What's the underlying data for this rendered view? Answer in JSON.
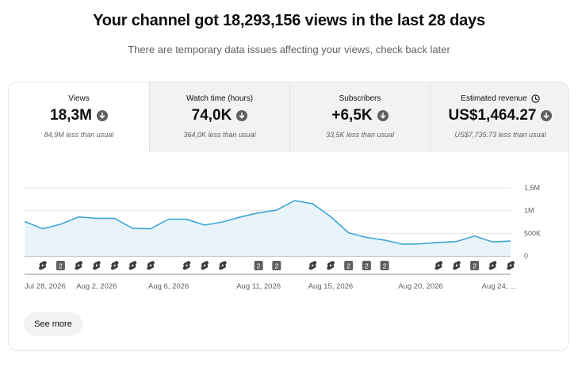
{
  "header": {
    "title": "Your channel got 18,293,156 views in the last 28 days",
    "subtitle": "There are temporary data issues affecting your views, check back later"
  },
  "tabs": [
    {
      "label": "Views",
      "value": "18,3M",
      "note": "84,9M less than usual",
      "selected": true
    },
    {
      "label": "Watch time (hours)",
      "value": "74,0K",
      "note": "364,0K less than usual",
      "selected": false
    },
    {
      "label": "Subscribers",
      "value": "+6,5K",
      "note": "33,5K less than usual",
      "selected": false
    },
    {
      "label": "Estimated revenue",
      "value": "US$1,464.27",
      "note": "US$7,735.73 less than usual",
      "selected": false,
      "icon": "clock-icon"
    }
  ],
  "chart_data": {
    "type": "area",
    "ylim": [
      0,
      1500000
    ],
    "y_ticks": [
      "1,5M",
      "1M",
      "500K",
      "0"
    ],
    "y_tick_values": [
      1500000,
      1000000,
      500000,
      0
    ],
    "x_labels": [
      "Jul 28, 2026",
      "Aug 2, 2026",
      "Aug 6, 2026",
      "Aug 11, 2026",
      "Aug 15, 2026",
      "Aug 20, 2026",
      "Aug 24, ..."
    ],
    "x_label_days": [
      0,
      4,
      8,
      13,
      17,
      22,
      26
    ],
    "values": [
      760000,
      600000,
      700000,
      860000,
      830000,
      830000,
      610000,
      600000,
      810000,
      810000,
      680000,
      750000,
      860000,
      950000,
      1010000,
      1220000,
      1150000,
      870000,
      510000,
      410000,
      350000,
      260000,
      270000,
      300000,
      320000,
      440000,
      310000,
      330000
    ],
    "line_color": "#3ea6d6",
    "fill_color": "#e8f4fa",
    "grid": true,
    "markers": [
      {
        "day": 1,
        "kind": "shorts",
        "label": ""
      },
      {
        "day": 2,
        "kind": "count",
        "label": "2"
      },
      {
        "day": 3,
        "kind": "shorts",
        "label": ""
      },
      {
        "day": 4,
        "kind": "shorts",
        "label": ""
      },
      {
        "day": 5,
        "kind": "shorts",
        "label": ""
      },
      {
        "day": 6,
        "kind": "shorts",
        "label": ""
      },
      {
        "day": 7,
        "kind": "shorts",
        "label": ""
      },
      {
        "day": 9,
        "kind": "shorts",
        "label": ""
      },
      {
        "day": 10,
        "kind": "shorts",
        "label": ""
      },
      {
        "day": 11,
        "kind": "shorts",
        "label": ""
      },
      {
        "day": 13,
        "kind": "count",
        "label": "2"
      },
      {
        "day": 14,
        "kind": "count",
        "label": "2"
      },
      {
        "day": 16,
        "kind": "shorts",
        "label": ""
      },
      {
        "day": 17,
        "kind": "shorts",
        "label": ""
      },
      {
        "day": 18,
        "kind": "count",
        "label": "2"
      },
      {
        "day": 19,
        "kind": "count",
        "label": "2"
      },
      {
        "day": 20,
        "kind": "count",
        "label": "2"
      },
      {
        "day": 23,
        "kind": "shorts",
        "label": ""
      },
      {
        "day": 24,
        "kind": "shorts",
        "label": ""
      },
      {
        "day": 25,
        "kind": "count",
        "label": "2"
      },
      {
        "day": 26,
        "kind": "shorts",
        "label": ""
      },
      {
        "day": 27,
        "kind": "shorts",
        "label": ""
      }
    ]
  },
  "footer": {
    "see_more": "See more"
  }
}
